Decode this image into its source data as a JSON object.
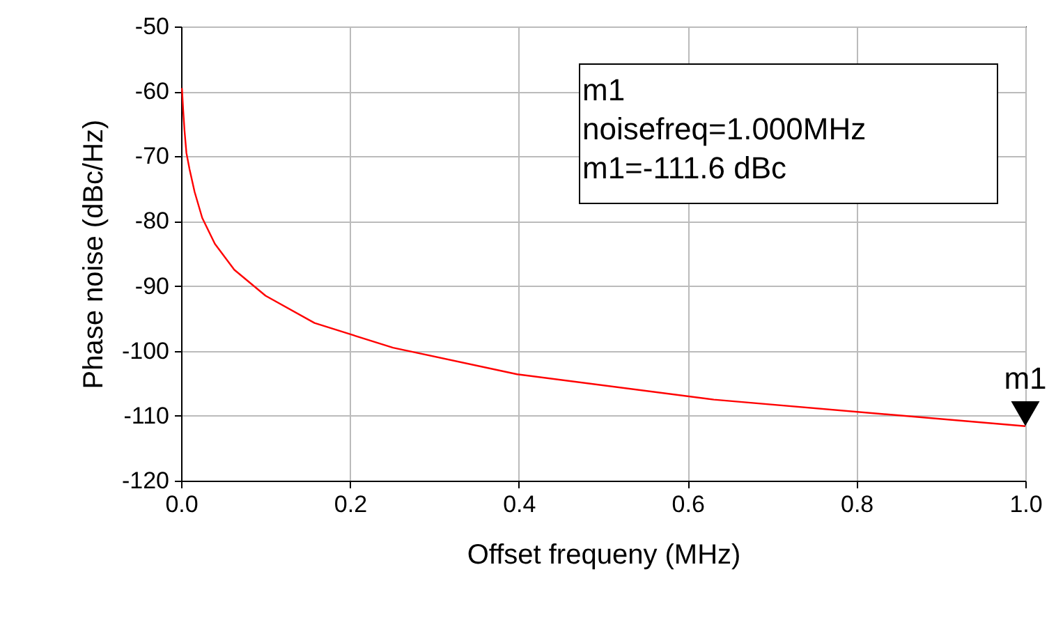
{
  "chart_data": {
    "type": "line",
    "xlabel": "Offset frequeny (MHz)",
    "ylabel": "Phase noise (dBc/Hz)",
    "x": [
      0.001,
      0.0025,
      0.004,
      0.0063,
      0.01,
      0.016,
      0.025,
      0.04,
      0.063,
      0.1,
      0.158,
      0.251,
      0.398,
      0.631,
      1.0
    ],
    "series": [
      {
        "color": "#ff0000",
        "values": [
          -59.5,
          -63,
          -66,
          -69.5,
          -72,
          -75.5,
          -79.5,
          -83.5,
          -87.5,
          -91.5,
          -95.7,
          -99.5,
          -103.6,
          -107.5,
          -111.6
        ]
      }
    ],
    "xlim": [
      0,
      1
    ],
    "xticks": [
      {
        "value": 0,
        "label": "0.0"
      },
      {
        "value": 0.2,
        "label": "0.2"
      },
      {
        "value": 0.4,
        "label": "0.4"
      },
      {
        "value": 0.6,
        "label": "0.6"
      },
      {
        "value": 0.8,
        "label": "0.8"
      },
      {
        "value": 1,
        "label": "1.0"
      }
    ],
    "ylim": [
      -120,
      -50
    ],
    "yticks": [
      -120,
      -110,
      -100,
      -90,
      -80,
      -70,
      -60,
      -50
    ],
    "grid": true,
    "line_style": "solid",
    "marker": "none",
    "annotations": [
      {
        "text": "m1",
        "x": 1.0,
        "y": -111.6
      },
      "m1",
      "noisefreq=1.000MHz",
      "m1=-111.6 dBc"
    ]
  }
}
